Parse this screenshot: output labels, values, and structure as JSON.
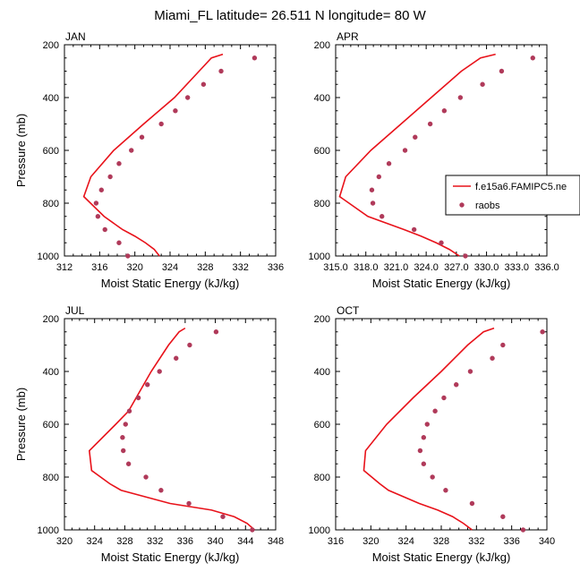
{
  "figure_title": "Miami_FL  latitude= 26.511 N longitude= 80 W",
  "legend": {
    "model_label": "f.e15a6.FAMIPC5.ne",
    "obs_label": "raobs",
    "model_color": "#e8121a",
    "obs_color": "#b03a5a"
  },
  "chart_data": [
    {
      "type": "line+scatter",
      "panel": "JAN",
      "title": "JAN",
      "xlabel": "Moist Static Energy (kJ/kg)",
      "ylabel": "Pressure (mb)",
      "xlim": [
        312,
        336
      ],
      "ylim": [
        1000,
        200
      ],
      "xticks": [
        "312",
        "316",
        "320",
        "324",
        "328",
        "332",
        "336"
      ],
      "yticks": [
        "200",
        "400",
        "600",
        "800",
        "1000"
      ],
      "model": {
        "p": [
          1000,
          975,
          950,
          925,
          900,
          850,
          775,
          700,
          600,
          500,
          400,
          300,
          250,
          236
        ],
        "mse": [
          322.8,
          322.2,
          321.2,
          320.0,
          318.6,
          316.5,
          314.2,
          315.0,
          317.6,
          321.0,
          324.5,
          327.3,
          328.7,
          330.0
        ]
      },
      "obs": {
        "p": [
          1000,
          950,
          900,
          850,
          800,
          750,
          700,
          650,
          600,
          550,
          500,
          450,
          400,
          350,
          300,
          250
        ],
        "mse": [
          319.2,
          318.2,
          316.6,
          315.8,
          315.6,
          316.2,
          317.2,
          318.2,
          319.6,
          320.8,
          323.0,
          324.6,
          326.0,
          327.8,
          329.8,
          333.6
        ]
      }
    },
    {
      "type": "line+scatter",
      "panel": "APR",
      "title": "APR",
      "xlabel": "Moist Static Energy (kJ/kg)",
      "ylabel": "",
      "xlim": [
        315,
        336
      ],
      "ylim": [
        1000,
        200
      ],
      "xticks": [
        "315.0",
        "318.0",
        "321.0",
        "324.0",
        "327.0",
        "330.0",
        "333.0",
        "336.0"
      ],
      "yticks": [
        "200",
        "400",
        "600",
        "800",
        "1000"
      ],
      "model": {
        "p": [
          1000,
          975,
          950,
          925,
          900,
          850,
          775,
          700,
          600,
          500,
          400,
          300,
          250,
          236
        ],
        "mse": [
          327.3,
          326.3,
          325.0,
          323.5,
          321.8,
          318.2,
          315.4,
          316.0,
          318.5,
          321.5,
          324.5,
          327.5,
          329.4,
          330.9
        ]
      },
      "obs": {
        "p": [
          1000,
          950,
          900,
          850,
          800,
          750,
          700,
          650,
          600,
          550,
          500,
          450,
          400,
          350,
          300,
          250
        ],
        "mse": [
          327.9,
          325.5,
          322.8,
          319.6,
          318.7,
          318.6,
          319.3,
          320.3,
          321.9,
          322.9,
          324.4,
          325.8,
          327.4,
          329.6,
          331.5,
          334.6
        ]
      }
    },
    {
      "type": "line+scatter",
      "panel": "JUL",
      "title": "JUL",
      "xlabel": "Moist Static Energy (kJ/kg)",
      "ylabel": "Pressure (mb)",
      "xlim": [
        320,
        348
      ],
      "ylim": [
        1000,
        200
      ],
      "xticks": [
        "320",
        "324",
        "328",
        "332",
        "336",
        "340",
        "344",
        "348"
      ],
      "yticks": [
        "200",
        "400",
        "600",
        "800",
        "1000"
      ],
      "model": {
        "p": [
          1000,
          975,
          950,
          925,
          900,
          850,
          825,
          775,
          700,
          600,
          550,
          450,
          400,
          300,
          250,
          236
        ],
        "mse": [
          345.2,
          344.2,
          342.5,
          339.5,
          334.0,
          327.5,
          326.0,
          323.6,
          323.3,
          326.8,
          328.5,
          330.5,
          331.5,
          333.8,
          335.2,
          336.0
        ]
      },
      "obs": {
        "p": [
          1000,
          950,
          900,
          850,
          800,
          750,
          700,
          650,
          600,
          550,
          500,
          450,
          400,
          350,
          300,
          250
        ],
        "mse": [
          344.9,
          341.0,
          336.5,
          332.8,
          330.8,
          328.5,
          327.8,
          327.7,
          328.1,
          328.6,
          329.8,
          331.0,
          332.6,
          334.8,
          336.6,
          340.1
        ]
      }
    },
    {
      "type": "line+scatter",
      "panel": "OCT",
      "title": "OCT",
      "xlabel": "Moist Static Energy (kJ/kg)",
      "ylabel": "",
      "xlim": [
        316,
        340
      ],
      "ylim": [
        1000,
        200
      ],
      "xticks": [
        "316",
        "320",
        "324",
        "328",
        "332",
        "336",
        "340"
      ],
      "yticks": [
        "200",
        "400",
        "600",
        "800",
        "1000"
      ],
      "model": {
        "p": [
          1000,
          975,
          950,
          925,
          900,
          850,
          825,
          775,
          700,
          600,
          500,
          400,
          300,
          250,
          236
        ],
        "mse": [
          331.5,
          330.5,
          329.3,
          327.6,
          325.5,
          322.0,
          321.0,
          319.2,
          319.4,
          321.8,
          324.8,
          328.0,
          331.0,
          332.8,
          334.0
        ]
      },
      "obs": {
        "p": [
          1000,
          950,
          900,
          850,
          800,
          750,
          700,
          650,
          600,
          550,
          500,
          450,
          400,
          350,
          300,
          250
        ],
        "mse": [
          337.3,
          335.0,
          331.5,
          328.5,
          327.0,
          326.0,
          325.6,
          326.0,
          326.4,
          327.3,
          328.3,
          329.7,
          331.3,
          333.8,
          335.0,
          339.5
        ]
      }
    }
  ]
}
